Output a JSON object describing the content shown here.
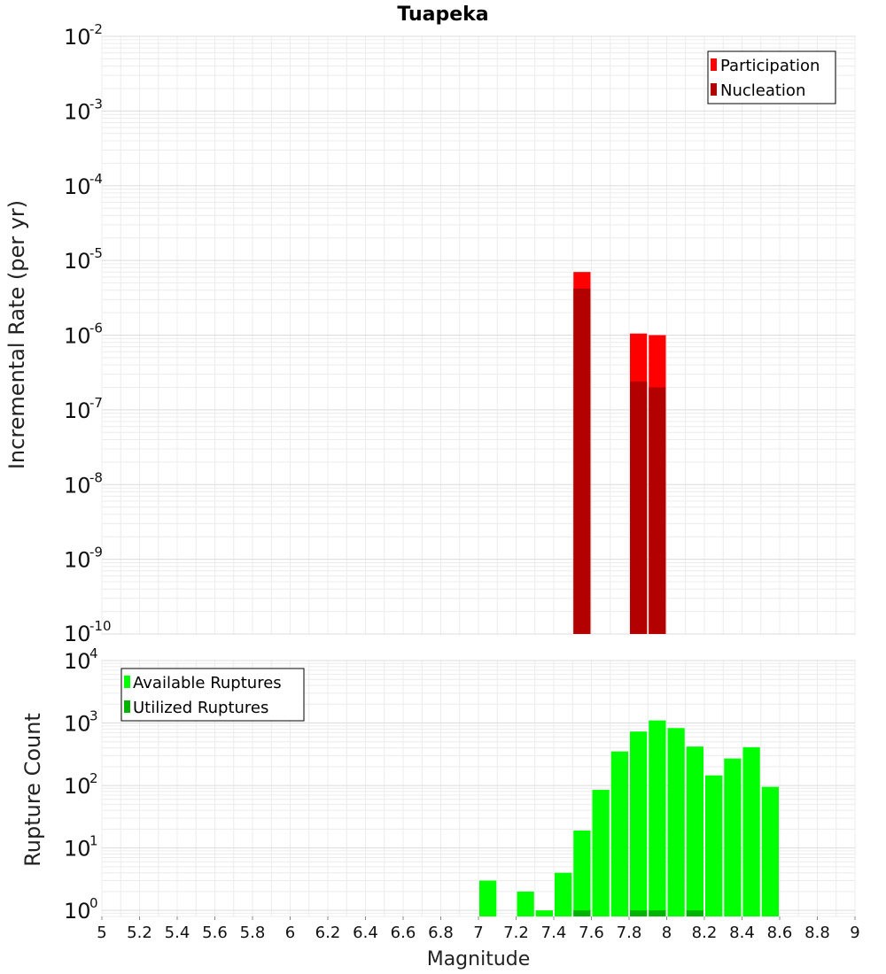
{
  "chart_data": [
    {
      "type": "bar",
      "title": "Tuapeka",
      "ylabel": "Incremental Rate (per yr)",
      "xlabel": "",
      "xlim": [
        5,
        9
      ],
      "ylim": [
        1e-10,
        0.01
      ],
      "yscale": "log",
      "grid": true,
      "legend_position": "top-right",
      "y_tick_exponents": [
        "-10",
        "-9",
        "-8",
        "-7",
        "-6",
        "-5",
        "-4",
        "-3",
        "-2"
      ],
      "bin_width": 0.1,
      "series": [
        {
          "name": "Participation",
          "color": "#ff0000",
          "x": [
            7.55,
            7.85,
            7.95
          ],
          "values": [
            7e-06,
            1.05e-06,
            1e-06
          ]
        },
        {
          "name": "Nucleation",
          "color": "#b30000",
          "x": [
            7.55,
            7.85,
            7.95
          ],
          "values": [
            4.2e-06,
            2.4e-07,
            2e-07
          ]
        }
      ]
    },
    {
      "type": "bar",
      "title": "",
      "ylabel": "Rupture Count",
      "xlabel": "Magnitude",
      "xlim": [
        5,
        9
      ],
      "ylim": [
        0.8,
        10000
      ],
      "yscale": "log",
      "grid": true,
      "legend_position": "top-left",
      "y_tick_exponents": [
        "0",
        "1",
        "2",
        "3",
        "4"
      ],
      "x_tick_labels": [
        "5",
        "5.2",
        "5.4",
        "5.6",
        "5.8",
        "6",
        "6.2",
        "6.4",
        "6.6",
        "6.8",
        "7",
        "7.2",
        "7.4",
        "7.6",
        "7.8",
        "8",
        "8.2",
        "8.4",
        "8.6",
        "8.8",
        "9"
      ],
      "bin_width": 0.1,
      "series": [
        {
          "name": "Available Ruptures",
          "color": "#00ff00",
          "x": [
            7.05,
            7.25,
            7.35,
            7.45,
            7.55,
            7.65,
            7.75,
            7.85,
            7.95,
            8.05,
            8.15,
            8.25,
            8.35,
            8.45,
            8.55
          ],
          "values": [
            3,
            2,
            1,
            4,
            19,
            85,
            350,
            730,
            1100,
            830,
            420,
            145,
            270,
            410,
            95
          ]
        },
        {
          "name": "Utilized Ruptures",
          "color": "#00b300",
          "x": [
            7.55,
            7.85,
            7.95,
            8.15
          ],
          "values": [
            1,
            1,
            1,
            1
          ]
        }
      ]
    }
  ]
}
